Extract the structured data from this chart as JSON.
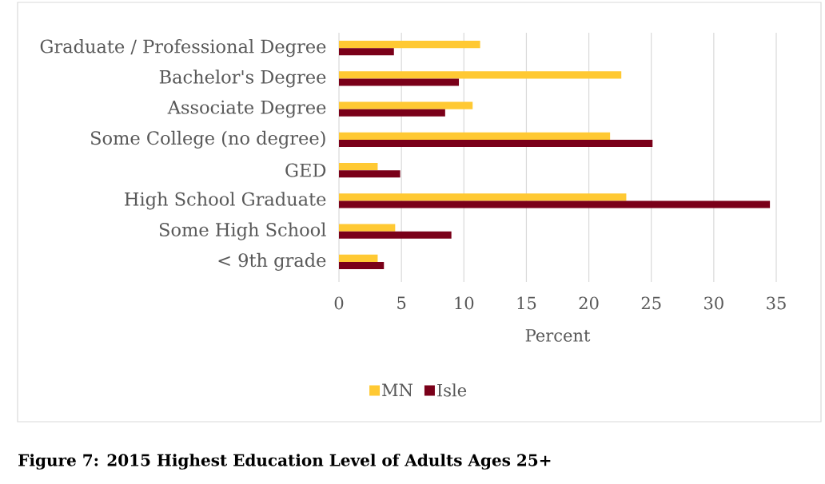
{
  "chart_data": {
    "type": "bar",
    "orientation": "horizontal",
    "categories": [
      "Graduate / Professional Degree",
      "Bachelor's Degree",
      "Associate Degree",
      "Some College (no degree)",
      "GED",
      "High School Graduate",
      "Some High School",
      "< 9th grade"
    ],
    "series": [
      {
        "name": "MN",
        "color": "#ffc933",
        "values": [
          11.3,
          22.6,
          10.7,
          21.7,
          3.1,
          23.0,
          4.5,
          3.1
        ]
      },
      {
        "name": "Isle",
        "color": "#7a0019",
        "values": [
          4.4,
          9.6,
          8.5,
          25.1,
          4.9,
          34.5,
          9.0,
          3.6
        ]
      }
    ],
    "xlabel": "Percent",
    "xlim": [
      0,
      35
    ],
    "xticks": [
      0,
      5,
      10,
      15,
      20,
      25,
      30,
      35
    ],
    "grid": "x",
    "legend": "bottom",
    "annotations": [
      "Figure 7: 2015 Highest Education Level of Adults Ages 25+"
    ]
  }
}
